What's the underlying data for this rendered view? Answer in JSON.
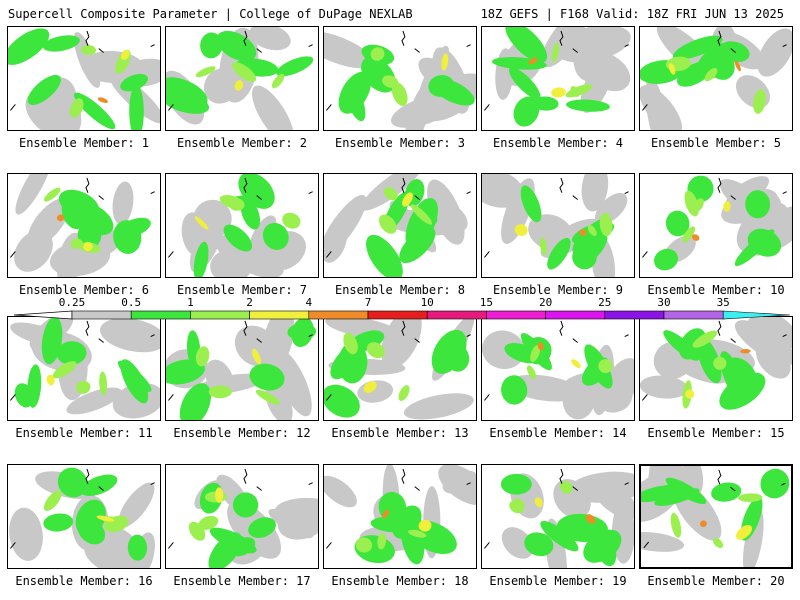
{
  "header": {
    "left": "Supercell Composite Parameter | College of DuPage NEXLAB",
    "right": "18Z GEFS | F168 Valid: 18Z FRI JUN 13 2025"
  },
  "chart_data": {
    "type": "heatmap",
    "title": "Supercell Composite Parameter",
    "panels": [
      "Ensemble Member: 1",
      "Ensemble Member: 2",
      "Ensemble Member: 3",
      "Ensemble Member: 4",
      "Ensemble Member: 5",
      "Ensemble Member: 6",
      "Ensemble Member: 7",
      "Ensemble Member: 8",
      "Ensemble Member: 9",
      "Ensemble Member: 10",
      "Ensemble Member: 11",
      "Ensemble Member: 12",
      "Ensemble Member: 13",
      "Ensemble Member: 14",
      "Ensemble Member: 15",
      "Ensemble Member: 16",
      "Ensemble Member: 17",
      "Ensemble Member: 18",
      "Ensemble Member: 19",
      "Ensemble Member: 20"
    ],
    "highlighted_panel": "Ensemble Member: 20",
    "colorbar": {
      "levels": [
        "0.25",
        "0.5",
        "1",
        "2",
        "4",
        "7",
        "10",
        "15",
        "20",
        "25",
        "30",
        "35"
      ],
      "colors": [
        "#c8c8c8",
        "#3ce63c",
        "#9bf050",
        "#f0f03c",
        "#f08c28",
        "#e61e1e",
        "#e6197d",
        "#f01ed2",
        "#dc14f0",
        "#8c14e6",
        "#b464e6",
        "#3cf0f0"
      ]
    }
  }
}
